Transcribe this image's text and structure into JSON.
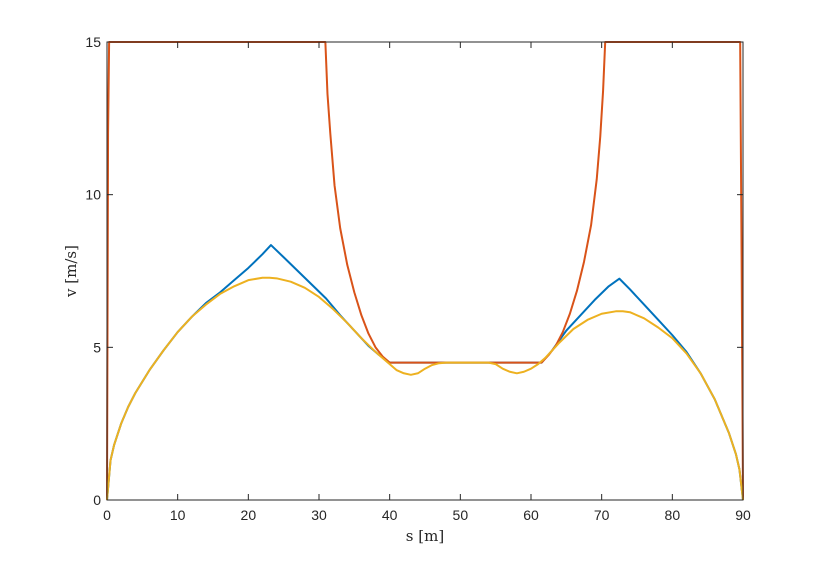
{
  "chart_data": {
    "type": "line",
    "title": "",
    "xlabel": "s [m]",
    "ylabel": "v [m/s]",
    "xlim": [
      0,
      90
    ],
    "ylim": [
      0,
      15
    ],
    "xticks": [
      0,
      10,
      20,
      30,
      40,
      50,
      60,
      70,
      80,
      90
    ],
    "yticks": [
      0,
      5,
      10,
      15
    ],
    "grid": false,
    "legend": "none",
    "series": [
      {
        "color": "#0072BD",
        "x": [
          0,
          0.5,
          1,
          2,
          3,
          4,
          6,
          8,
          10,
          12,
          14,
          16,
          18,
          20,
          22,
          23.2,
          25,
          27,
          29,
          31,
          33,
          35,
          37,
          38.5,
          40,
          45,
          50,
          55,
          61.5,
          63,
          65,
          67,
          69,
          71,
          72.5,
          74,
          76,
          78,
          80,
          82,
          84,
          86,
          88,
          89,
          89.5,
          90
        ],
        "y": [
          0,
          1.3,
          1.8,
          2.5,
          3.05,
          3.5,
          4.25,
          4.9,
          5.5,
          6.0,
          6.45,
          6.8,
          7.2,
          7.6,
          8.05,
          8.35,
          7.95,
          7.5,
          7.05,
          6.6,
          6.05,
          5.55,
          5.05,
          4.75,
          4.5,
          4.5,
          4.5,
          4.5,
          4.5,
          4.9,
          5.55,
          6.05,
          6.55,
          7.0,
          7.25,
          6.9,
          6.4,
          5.9,
          5.4,
          4.85,
          4.15,
          3.3,
          2.2,
          1.5,
          1.0,
          0
        ]
      },
      {
        "color": "#D95319",
        "x": [
          0,
          0.15,
          0.3,
          10,
          20,
          30,
          30.9,
          31.2,
          31.6,
          32.2,
          33,
          34,
          35,
          36,
          37,
          38,
          39,
          40,
          50,
          61.5,
          62.5,
          63.5,
          64.5,
          65.5,
          66.5,
          67.5,
          68.5,
          69.3,
          69.8,
          70.2,
          70.5,
          75,
          80,
          85,
          89.6,
          89.8,
          90
        ],
        "y": [
          0,
          12.0,
          15,
          15,
          15,
          15,
          15,
          13.3,
          12.0,
          10.3,
          8.9,
          7.7,
          6.8,
          6.05,
          5.45,
          5.0,
          4.7,
          4.5,
          4.5,
          4.5,
          4.75,
          5.05,
          5.5,
          6.1,
          6.85,
          7.8,
          9.0,
          10.5,
          11.9,
          13.4,
          15,
          15,
          15,
          15,
          15,
          8.0,
          0
        ]
      },
      {
        "color": "#EDB120",
        "x": [
          0,
          0.5,
          1,
          2,
          3,
          4,
          6,
          8,
          10,
          12,
          14,
          16,
          18,
          20,
          22,
          23,
          24,
          26,
          28,
          30,
          32,
          34,
          36,
          38,
          40,
          41,
          42,
          43,
          44,
          45,
          46,
          47,
          48,
          49,
          50,
          51,
          52,
          53,
          54,
          55,
          56,
          57,
          58,
          59,
          60,
          61,
          62,
          63,
          64,
          66,
          68,
          70,
          72,
          73,
          74,
          76,
          78,
          80,
          82,
          84,
          86,
          88,
          89,
          89.5,
          90
        ],
        "y": [
          0,
          1.3,
          1.8,
          2.5,
          3.05,
          3.5,
          4.25,
          4.9,
          5.5,
          6.0,
          6.4,
          6.75,
          7.0,
          7.2,
          7.28,
          7.28,
          7.26,
          7.15,
          6.95,
          6.65,
          6.25,
          5.8,
          5.3,
          4.85,
          4.45,
          4.25,
          4.15,
          4.1,
          4.15,
          4.3,
          4.42,
          4.48,
          4.5,
          4.5,
          4.5,
          4.5,
          4.5,
          4.5,
          4.5,
          4.45,
          4.3,
          4.2,
          4.15,
          4.2,
          4.3,
          4.45,
          4.65,
          4.9,
          5.15,
          5.6,
          5.9,
          6.1,
          6.18,
          6.18,
          6.15,
          5.95,
          5.65,
          5.3,
          4.8,
          4.15,
          3.3,
          2.2,
          1.5,
          1.0,
          0
        ]
      }
    ]
  }
}
